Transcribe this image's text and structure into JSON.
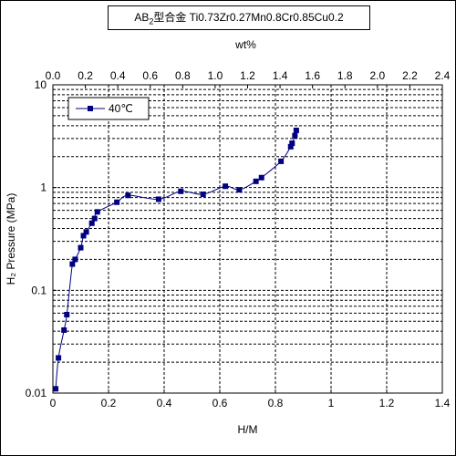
{
  "chart_data": {
    "type": "scatter",
    "title": {
      "prefix": "AB",
      "subscript": "2",
      "suffix": "型合金  Ti0.73Zr0.27Mn0.8Cr0.85Cu0.2"
    },
    "xlabel": "H/M",
    "x2label": "wt%",
    "ylabel": "H₂ Pressure (MPa)",
    "x_ticks": [
      "0",
      "0.2",
      "0.4",
      "0.6",
      "0.8",
      "1",
      "1.2",
      "1.4"
    ],
    "x2_ticks": [
      "0.0",
      "0.2",
      "0.4",
      "0.6",
      "0.8",
      "1.0",
      "1.2",
      "1.4",
      "1.6",
      "1.8",
      "2.0",
      "2.2",
      "2.4"
    ],
    "y_ticks": [
      "0.01",
      "0.1",
      "1",
      "10"
    ],
    "xlim": [
      0,
      1.4
    ],
    "x2lim": [
      0,
      2.4
    ],
    "ylim": [
      0.01,
      10
    ],
    "y_scale": "log",
    "grid": true,
    "legend": "top-left",
    "series": [
      {
        "name": "40℃",
        "color": "#000080",
        "marker": "square",
        "x": [
          0.01,
          0.02,
          0.04,
          0.05,
          0.07,
          0.08,
          0.1,
          0.11,
          0.12,
          0.14,
          0.15,
          0.16,
          0.23,
          0.27,
          0.38,
          0.46,
          0.54,
          0.62,
          0.67,
          0.73,
          0.75,
          0.82,
          0.855,
          0.86,
          0.87,
          0.875
        ],
        "y": [
          0.011,
          0.022,
          0.041,
          0.058,
          0.18,
          0.2,
          0.26,
          0.34,
          0.37,
          0.45,
          0.5,
          0.58,
          0.72,
          0.84,
          0.77,
          0.92,
          0.86,
          1.03,
          0.95,
          1.15,
          1.25,
          1.8,
          2.5,
          2.7,
          3.2,
          3.6
        ]
      }
    ]
  }
}
